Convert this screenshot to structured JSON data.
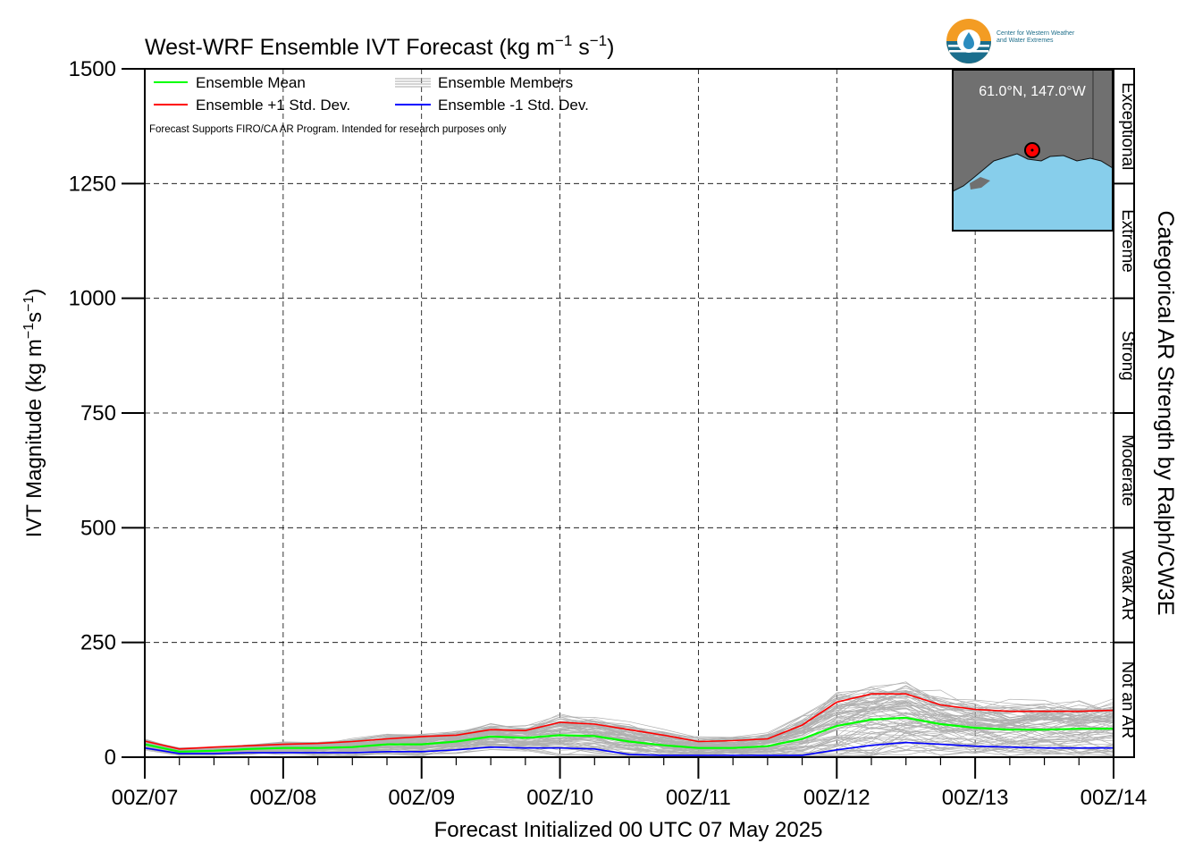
{
  "header": {
    "title_main": "West-WRF Ensemble IVT Forecast (kg m",
    "title_exp1": "−1",
    "title_mid": " s",
    "title_exp2": "−1",
    "title_end": ")",
    "logo_line1": "Center for Western Weather",
    "logo_line2": "and Water Extremes"
  },
  "note": "Forecast Supports FIRO/CA AR Program. Intended for research purposes only",
  "inset": {
    "label": "61.0°N, 147.0°W",
    "colors": {
      "land": "#707070",
      "ocean": "#87ceeb",
      "marker": "#ff0000"
    }
  },
  "ar_scale": {
    "title": "Categorical AR Strength by Ralph/CW3E",
    "categories": [
      "Not an AR",
      "Weak AR",
      "Strong",
      "Moderate",
      "Extreme",
      "Exceptional"
    ],
    "ordered": [
      {
        "label": "Not an AR",
        "from": 0,
        "to": 250
      },
      {
        "label": "Weak AR",
        "from": 250,
        "to": 500
      },
      {
        "label": "Moderate",
        "from": 500,
        "to": 750
      },
      {
        "label": "Strong",
        "from": 750,
        "to": 1000
      },
      {
        "label": "Extreme",
        "from": 1000,
        "to": 1250
      },
      {
        "label": "Exceptional",
        "from": 1250,
        "to": 1500
      }
    ]
  },
  "chart_data": {
    "type": "line",
    "title": "West-WRF Ensemble IVT Forecast (kg m−1 s−1)",
    "xlabel": "Forecast Initialized 00 UTC 07 May 2025",
    "ylabel_main": "IVT Magnitude (kg m",
    "ylabel_exp1": "−1",
    "ylabel_mid": "s",
    "ylabel_exp2": "−1",
    "ylabel_end": ")",
    "x_ticks": [
      "00Z/07",
      "00Z/08",
      "00Z/09",
      "00Z/10",
      "00Z/11",
      "00Z/12",
      "00Z/13",
      "00Z/14"
    ],
    "y_ticks": [
      0,
      250,
      500,
      750,
      1000,
      1250,
      1500
    ],
    "ylim": [
      0,
      1500
    ],
    "x_hours": [
      0,
      6,
      12,
      18,
      24,
      30,
      36,
      42,
      48,
      54,
      60,
      66,
      72,
      78,
      84,
      90,
      96,
      102,
      108,
      114,
      120,
      126,
      132,
      138,
      144,
      150,
      156,
      162,
      168
    ],
    "grid": true,
    "legend_position": "top-left",
    "series": [
      {
        "name": "Ensemble Mean",
        "color": "#00ff00",
        "values": [
          28,
          12,
          14,
          18,
          20,
          20,
          22,
          28,
          28,
          34,
          45,
          42,
          48,
          46,
          34,
          26,
          20,
          20,
          24,
          40,
          68,
          82,
          86,
          72,
          64,
          60,
          60,
          62,
          62
        ]
      },
      {
        "name": "Ensemble +1 Std. Dev.",
        "color": "#ff0000",
        "values": [
          35,
          18,
          22,
          25,
          28,
          30,
          34,
          40,
          45,
          48,
          60,
          58,
          76,
          72,
          60,
          48,
          34,
          36,
          40,
          70,
          120,
          138,
          138,
          114,
          104,
          100,
          100,
          100,
          102
        ]
      },
      {
        "name": "Ensemble -1 Std. Dev.",
        "color": "#0000ff",
        "values": [
          20,
          8,
          8,
          10,
          10,
          10,
          10,
          12,
          12,
          16,
          22,
          20,
          20,
          18,
          6,
          4,
          4,
          4,
          4,
          4,
          16,
          26,
          32,
          28,
          24,
          22,
          20,
          20,
          20
        ]
      },
      {
        "name": "Ensemble Members",
        "color": "#aaaaaa",
        "values": []
      }
    ]
  }
}
